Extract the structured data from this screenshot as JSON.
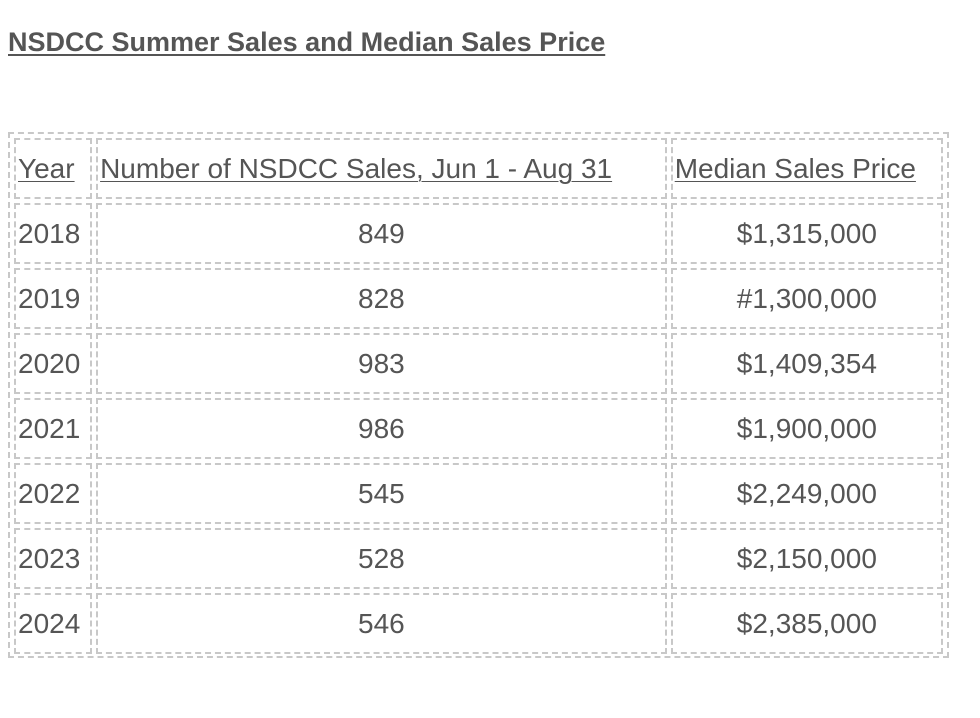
{
  "title": "NSDCC Summer Sales and Median Sales Price",
  "table": {
    "headers": {
      "year": "Year",
      "sales": "Number of NSDCC Sales, Jun 1 - Aug 31",
      "price": "Median Sales Price"
    },
    "rows": [
      {
        "year": "2018",
        "sales": "849",
        "price": "$1,315,000"
      },
      {
        "year": "2019",
        "sales": "828",
        "price": "#1,300,000"
      },
      {
        "year": "2020",
        "sales": "983",
        "price": "$1,409,354"
      },
      {
        "year": "2021",
        "sales": "986",
        "price": "$1,900,000"
      },
      {
        "year": "2022",
        "sales": "545",
        "price": "$2,249,000"
      },
      {
        "year": "2023",
        "sales": "528",
        "price": "$2,150,000"
      },
      {
        "year": "2024",
        "sales": "546",
        "price": "$2,385,000"
      }
    ]
  }
}
